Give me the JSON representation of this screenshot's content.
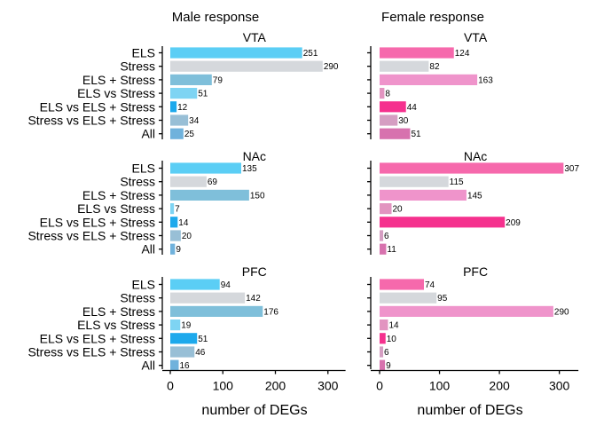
{
  "colors": {
    "male": [
      "#5BCEF5",
      "#D5D8DC",
      "#7FBFDA",
      "#7ED4F3",
      "#1DA9EC",
      "#98BFD6",
      "#70B2DC"
    ],
    "female": [
      "#F669AC",
      "#D5D8DC",
      "#EF94CB",
      "#E294C0",
      "#F5318E",
      "#D59EC2",
      "#D772AE"
    ]
  },
  "panel_titles": {
    "male": "Male response",
    "female": "Female response"
  },
  "xlabel": "number of DEGs",
  "chart_data": [
    {
      "type": "bar",
      "orientation": "horizontal",
      "panel": "male",
      "xlabel": "number of DEGs",
      "xlim": [
        0,
        320
      ],
      "xticks": [
        0,
        100,
        200,
        300
      ],
      "categories": [
        "ELS",
        "Stress",
        "ELS + Stress",
        "ELS vs Stress",
        "ELS vs ELS + Stress",
        "Stress vs ELS + Stress",
        "All"
      ],
      "series": [
        {
          "name": "VTA",
          "values": [
            251,
            290,
            79,
            51,
            12,
            34,
            25
          ]
        },
        {
          "name": "NAc",
          "values": [
            135,
            69,
            150,
            7,
            14,
            20,
            9
          ]
        },
        {
          "name": "PFC",
          "values": [
            94,
            142,
            176,
            19,
            51,
            46,
            16
          ]
        }
      ]
    },
    {
      "type": "bar",
      "orientation": "horizontal",
      "panel": "female",
      "xlabel": "number of DEGs",
      "xlim": [
        0,
        320
      ],
      "xticks": [
        0,
        100,
        200,
        300
      ],
      "categories": [
        "ELS",
        "Stress",
        "ELS + Stress",
        "ELS vs Stress",
        "ELS vs ELS + Stress",
        "Stress vs ELS + Stress",
        "All"
      ],
      "series": [
        {
          "name": "VTA",
          "values": [
            124,
            82,
            163,
            8,
            44,
            30,
            51
          ]
        },
        {
          "name": "NAc",
          "values": [
            307,
            115,
            145,
            20,
            209,
            6,
            11
          ]
        },
        {
          "name": "PFC",
          "values": [
            74,
            95,
            290,
            14,
            10,
            6,
            9
          ]
        }
      ]
    }
  ]
}
